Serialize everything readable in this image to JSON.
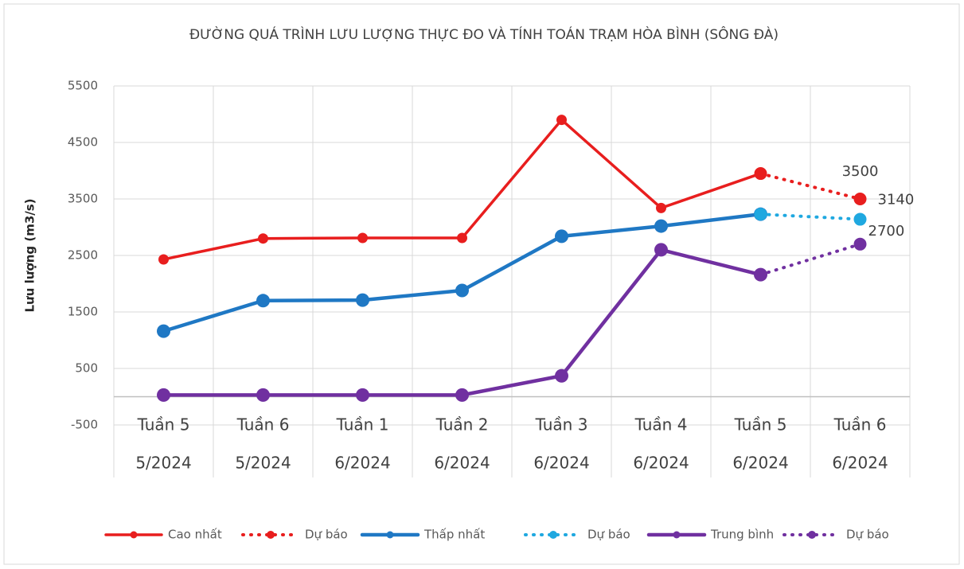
{
  "chart_data": {
    "type": "line",
    "title": "ĐƯỜNG QUÁ TRÌNH LƯU LƯỢNG THỰC ĐO VÀ TÍNH TOÁN TRẠM HÒA BÌNH (SÔNG ĐÀ)",
    "y_label": "Lưu lượng (m3/s)",
    "categories": [
      [
        "Tuần 5",
        "5/2024"
      ],
      [
        "Tuần 6",
        "5/2024"
      ],
      [
        "Tuần 1",
        "6/2024"
      ],
      [
        "Tuần 2",
        "6/2024"
      ],
      [
        "Tuần 3",
        "6/2024"
      ],
      [
        "Tuần 4",
        "6/2024"
      ],
      [
        "Tuần 5",
        "6/2024"
      ],
      [
        "Tuần 6",
        "6/2024"
      ]
    ],
    "series": [
      {
        "name": "Cao nhất",
        "color": "#e81e1e",
        "style": "solid",
        "values": [
          2430,
          2800,
          2810,
          2810,
          4900,
          3340,
          3950,
          null
        ]
      },
      {
        "name": "Dự báo",
        "color": "#e81e1e",
        "style": "dotted",
        "values": [
          null,
          null,
          null,
          null,
          null,
          null,
          3950,
          3500
        ],
        "data_labels": "last"
      },
      {
        "name": "Thấp nhất",
        "color": "#1f78c4",
        "style": "solid",
        "values": [
          1160,
          1700,
          1710,
          1880,
          2840,
          3020,
          3230,
          null
        ]
      },
      {
        "name": "Dự báo",
        "color": "#1fa8e0",
        "style": "dotted",
        "values": [
          null,
          null,
          null,
          null,
          null,
          null,
          3230,
          3140
        ],
        "data_labels": "last"
      },
      {
        "name": "Trung bình",
        "color": "#7030a0",
        "style": "solid",
        "values": [
          30,
          30,
          30,
          30,
          370,
          2600,
          2160,
          null
        ]
      },
      {
        "name": "Dự báo",
        "color": "#7030a0",
        "style": "dotted",
        "values": [
          null,
          null,
          null,
          null,
          null,
          null,
          2160,
          2700
        ],
        "data_labels": "last"
      }
    ],
    "ylim": [
      -500,
      5500
    ],
    "yticks": [
      -500,
      500,
      1500,
      2500,
      3500,
      4500,
      5500
    ],
    "grid": true,
    "legend": "bottom"
  }
}
